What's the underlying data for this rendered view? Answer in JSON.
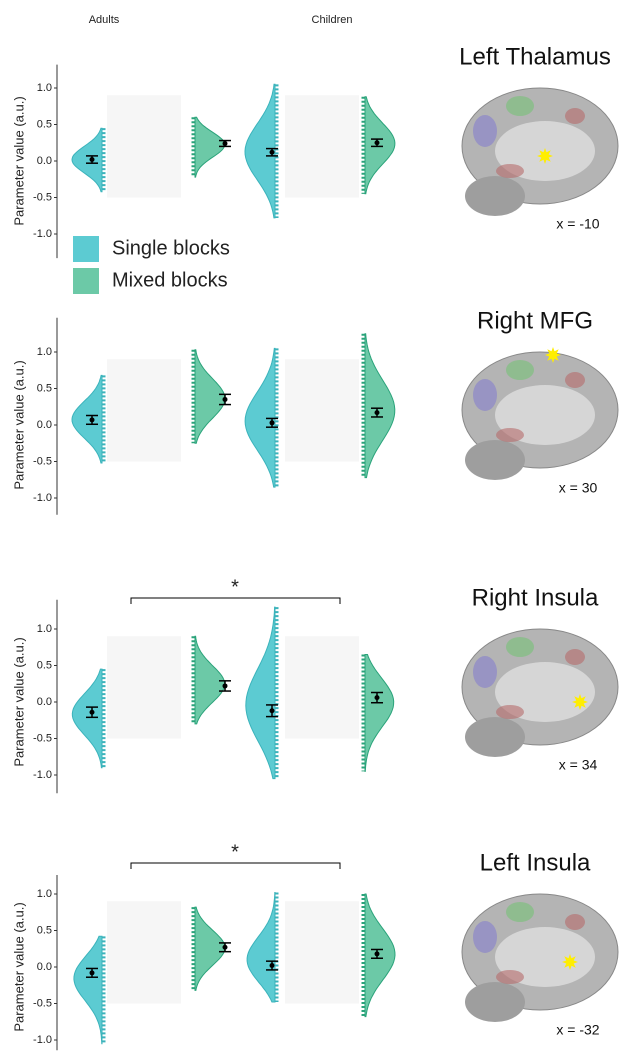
{
  "column_labels": [
    "Adults",
    "Children"
  ],
  "legend": [
    {
      "name": "Single blocks",
      "color": "#5ccbd2"
    },
    {
      "name": "Mixed blocks",
      "color": "#6cc9a7"
    }
  ],
  "chart_data": [
    {
      "type": "raincloud",
      "ylabel": "Parameter value (a.u.)",
      "region": "Left Thalamus",
      "coordinate": "x = -10",
      "ylim": [
        -1.33,
        1.32
      ],
      "yticks": [
        {
          "value": 1,
          "label": "1.0"
        },
        {
          "value": 0.5,
          "label": "0.5"
        },
        {
          "value": 0,
          "label": "0.0"
        },
        {
          "value": -0.5,
          "label": "-0.5"
        },
        {
          "value": -1,
          "label": "-1.0"
        }
      ],
      "series": [
        {
          "name": "Single blocks",
          "color": "#5ccbd2",
          "values": [
            0.02,
            0.12
          ],
          "errors": [
            0.05,
            0.05
          ],
          "min": [
            -0.42,
            -0.78
          ],
          "max": [
            0.45,
            1.05
          ]
        },
        {
          "name": "Mixed blocks",
          "color": "#6cc9a7",
          "values": [
            0.24,
            0.25
          ],
          "errors": [
            0.04,
            0.05
          ],
          "min": [
            -0.22,
            -0.45
          ],
          "max": [
            0.6,
            0.88
          ]
        }
      ]
    },
    {
      "type": "raincloud",
      "ylabel": "Parameter value (a.u.)",
      "region": "Right MFG",
      "coordinate": "x = 30",
      "ylim": [
        -1.23,
        1.47
      ],
      "yticks": [
        {
          "value": 1,
          "label": "1.0"
        },
        {
          "value": 0.5,
          "label": "0.5"
        },
        {
          "value": 0,
          "label": "0.0"
        },
        {
          "value": -0.5,
          "label": "-0.5"
        },
        {
          "value": -1,
          "label": "-1.0"
        }
      ],
      "series": [
        {
          "name": "Single blocks",
          "color": "#5ccbd2",
          "values": [
            0.07,
            0.03
          ],
          "errors": [
            0.06,
            0.06
          ],
          "min": [
            -0.52,
            -0.85
          ],
          "max": [
            0.68,
            1.05
          ]
        },
        {
          "name": "Mixed blocks",
          "color": "#6cc9a7",
          "values": [
            0.35,
            0.17
          ],
          "errors": [
            0.07,
            0.06
          ],
          "min": [
            -0.25,
            -0.72
          ],
          "max": [
            1.03,
            1.25
          ]
        }
      ]
    },
    {
      "type": "raincloud",
      "ylabel": "Parameter value (a.u.)",
      "region": "Right Insula",
      "coordinate": "x = 34",
      "annotation": "*",
      "ylim": [
        -1.25,
        1.4
      ],
      "yticks": [
        {
          "value": 1,
          "label": "1.0"
        },
        {
          "value": 0.5,
          "label": "0.5"
        },
        {
          "value": 0,
          "label": "0.0"
        },
        {
          "value": -0.5,
          "label": "-0.5"
        },
        {
          "value": -1,
          "label": "-1.0"
        }
      ],
      "series": [
        {
          "name": "Single blocks",
          "color": "#5ccbd2",
          "values": [
            -0.14,
            -0.12
          ],
          "errors": [
            0.07,
            0.08
          ],
          "min": [
            -0.9,
            -1.05
          ],
          "max": [
            0.45,
            1.3
          ]
        },
        {
          "name": "Mixed blocks",
          "color": "#6cc9a7",
          "values": [
            0.22,
            0.06
          ],
          "errors": [
            0.07,
            0.07
          ],
          "min": [
            -0.3,
            -0.95
          ],
          "max": [
            0.9,
            0.65
          ]
        }
      ]
    },
    {
      "type": "raincloud",
      "ylabel": "Parameter value (a.u.)",
      "region": "Left Insula",
      "coordinate": "x = -32",
      "annotation": "*",
      "ylim": [
        -1.14,
        1.26
      ],
      "yticks": [
        {
          "value": 1,
          "label": "1.0"
        },
        {
          "value": 0.5,
          "label": "0.5"
        },
        {
          "value": 0,
          "label": "0.0"
        },
        {
          "value": -0.5,
          "label": "-0.5"
        },
        {
          "value": -1,
          "label": "-1.0"
        }
      ],
      "series": [
        {
          "name": "Single blocks",
          "color": "#5ccbd2",
          "values": [
            -0.08,
            0.02
          ],
          "errors": [
            0.06,
            0.06
          ],
          "min": [
            -1.05,
            -0.48
          ],
          "max": [
            0.42,
            1.02
          ]
        },
        {
          "name": "Mixed blocks",
          "color": "#6cc9a7",
          "values": [
            0.27,
            0.18
          ],
          "errors": [
            0.06,
            0.06
          ],
          "min": [
            -0.32,
            -0.68
          ],
          "max": [
            0.82,
            1.0
          ]
        }
      ]
    }
  ]
}
